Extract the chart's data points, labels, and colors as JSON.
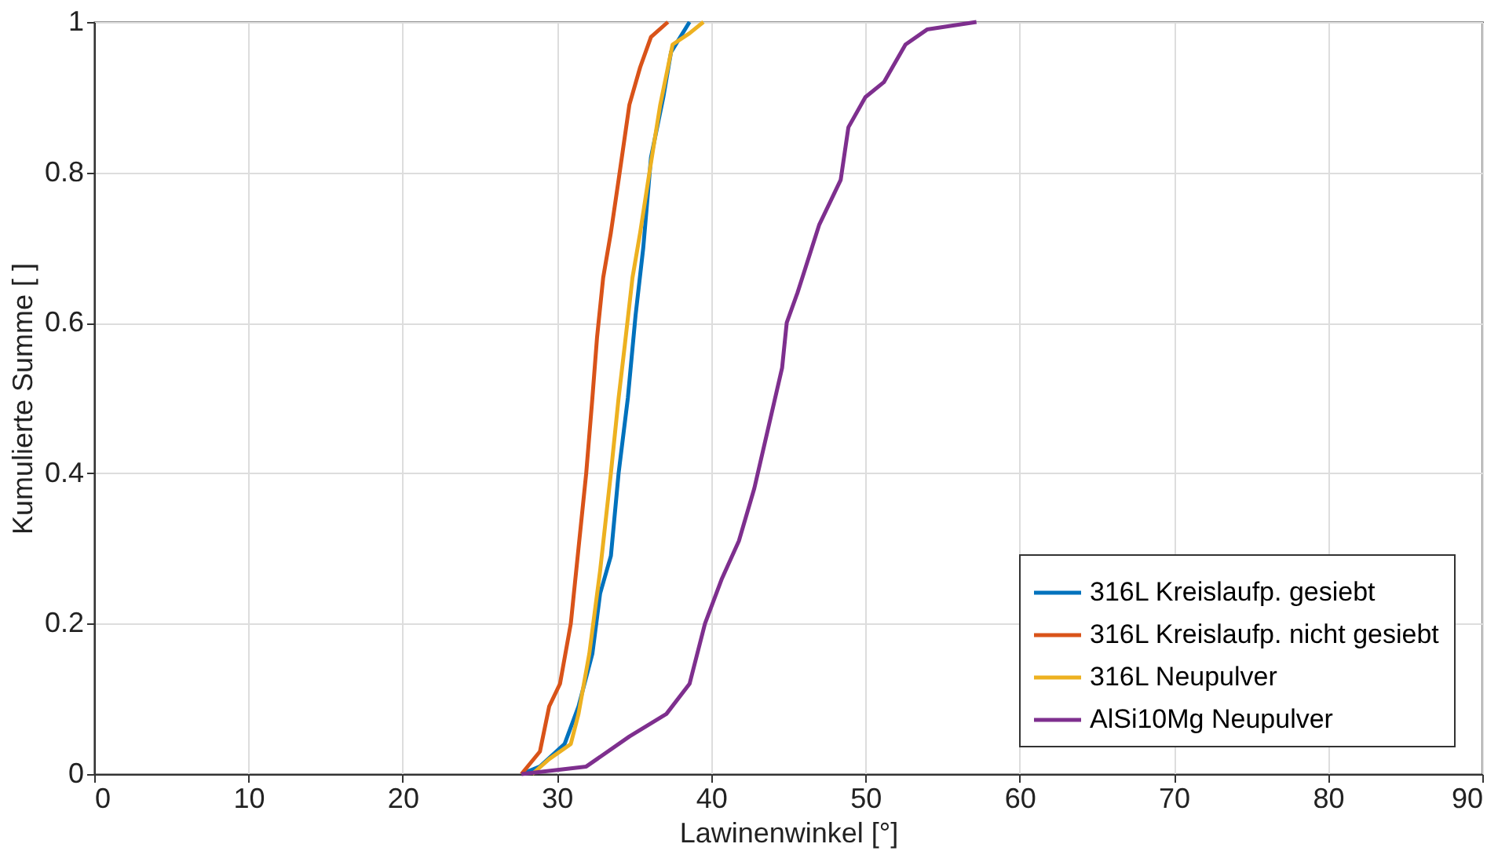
{
  "chart_data": {
    "type": "line",
    "xlabel": "Lawinenwinkel [°]",
    "ylabel": "Kumulierte Summe [ ]",
    "xlim": [
      0,
      90
    ],
    "xticks": [
      0,
      10,
      20,
      30,
      40,
      50,
      60,
      70,
      80,
      90
    ],
    "ylim": [
      0,
      1
    ],
    "yticks": [
      0,
      0.2,
      0.4,
      0.6,
      0.8,
      1
    ],
    "grid": true,
    "legend": "bottom right",
    "marker": "none",
    "line_style": "solid",
    "series": [
      {
        "name": "316L Kreislaufp. gesiebt",
        "color": "#0072bd",
        "x": [
          27.7,
          28.9,
          30.5,
          31.4,
          32.3,
          32.8,
          33.5,
          34.0,
          34.6,
          35.1,
          35.6,
          36.1,
          36.9,
          37.4,
          38.6
        ],
        "values": [
          0,
          0.01,
          0.04,
          0.09,
          0.16,
          0.24,
          0.29,
          0.4,
          0.5,
          0.61,
          0.7,
          0.82,
          0.9,
          0.96,
          1
        ]
      },
      {
        "name": "316L Kreislaufp. nicht gesiebt",
        "color": "#d95319",
        "x": [
          27.7,
          28.9,
          29.5,
          30.2,
          30.9,
          31.4,
          31.9,
          32.3,
          32.6,
          33.0,
          33.5,
          34.0,
          34.7,
          35.4,
          36.1,
          37.2
        ],
        "values": [
          0,
          0.03,
          0.09,
          0.12,
          0.2,
          0.3,
          0.4,
          0.5,
          0.58,
          0.66,
          0.72,
          0.79,
          0.89,
          0.94,
          0.98,
          1
        ]
      },
      {
        "name": "316L Neupulver",
        "color": "#edb120",
        "x": [
          28.4,
          29.5,
          30.9,
          31.4,
          32.1,
          32.8,
          33.5,
          34.0,
          34.4,
          34.9,
          35.4,
          36.0,
          36.7,
          37.5,
          38.6,
          39.5
        ],
        "values": [
          0,
          0.02,
          0.04,
          0.08,
          0.16,
          0.27,
          0.4,
          0.5,
          0.57,
          0.66,
          0.72,
          0.8,
          0.89,
          0.97,
          0.985,
          1
        ]
      },
      {
        "name": "AlSi10Mg Neupulver",
        "color": "#7e2f8e",
        "x": [
          27.7,
          31.9,
          34.7,
          37.1,
          38.6,
          39.6,
          40.7,
          41.8,
          42.8,
          43.7,
          44.6,
          44.9,
          45.6,
          47.0,
          48.4,
          48.9,
          50.0,
          51.2,
          52.6,
          54.0,
          57.2
        ],
        "values": [
          0,
          0.01,
          0.05,
          0.08,
          0.12,
          0.2,
          0.26,
          0.31,
          0.38,
          0.46,
          0.54,
          0.6,
          0.64,
          0.73,
          0.79,
          0.86,
          0.9,
          0.92,
          0.97,
          0.99,
          1
        ]
      }
    ]
  }
}
